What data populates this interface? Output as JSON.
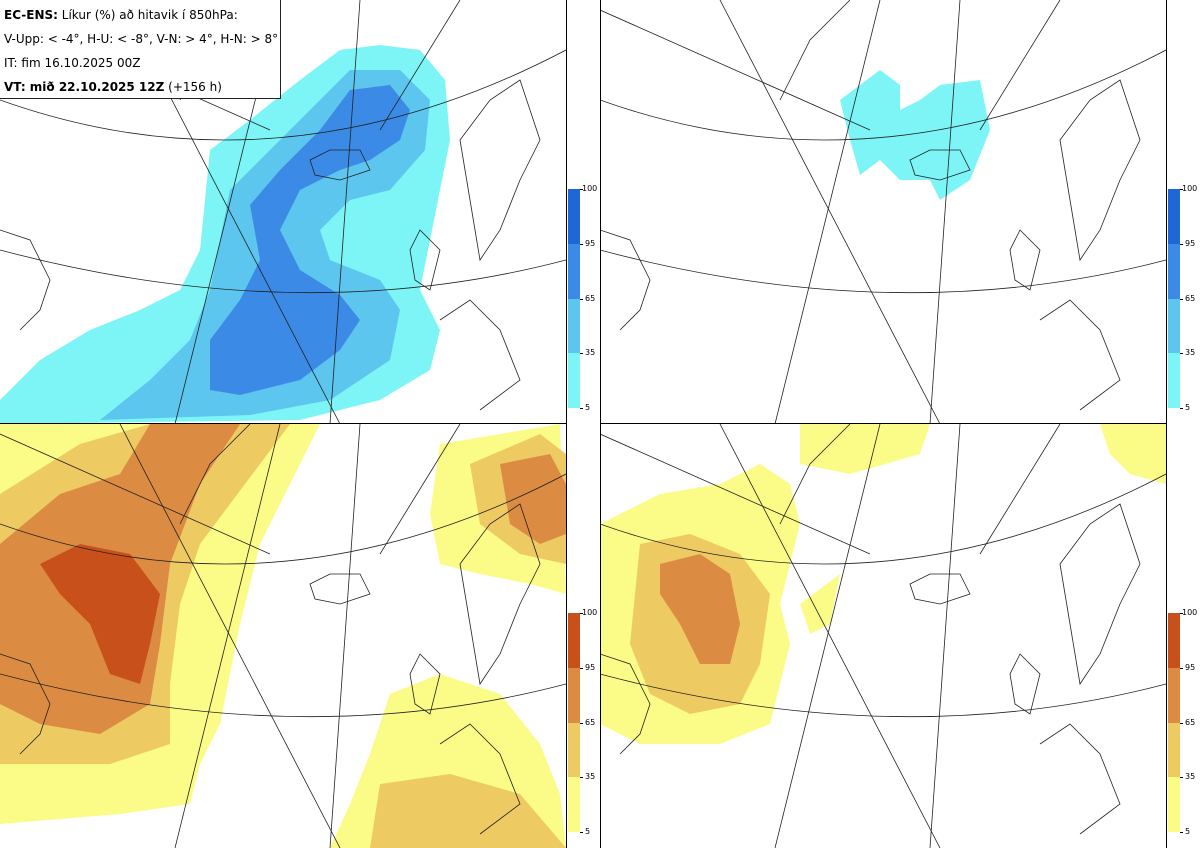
{
  "header": {
    "line1_bold": "EC-ENS:",
    "line1_rest": " Líkur (%) að hitavik í 850hPa:",
    "line2": "V-Upp: < -4°, H-U: < -8°, V-N: > 4°, H-N: > 8°",
    "line3": "IT: fim 16.10.2025 00Z",
    "line4_bold": "VT: mið 22.10.2025 12Z",
    "line4_rest": " (+156 h)"
  },
  "colorbars": {
    "blue": {
      "ticks": [
        "100",
        "95",
        "65",
        "35",
        "5"
      ],
      "colors": [
        "#1f66d6",
        "#3b8be6",
        "#5cc6ef",
        "#7df4f6"
      ]
    },
    "orange": {
      "ticks": [
        "100",
        "95",
        "65",
        "35",
        "5"
      ],
      "colors": [
        "#c8501a",
        "#dc8b43",
        "#eeca62",
        "#fbfb87"
      ]
    }
  },
  "panels": [
    {
      "name": "V-Upp"
    },
    {
      "name": "H-U"
    },
    {
      "name": "V-N"
    },
    {
      "name": "H-N"
    }
  ]
}
